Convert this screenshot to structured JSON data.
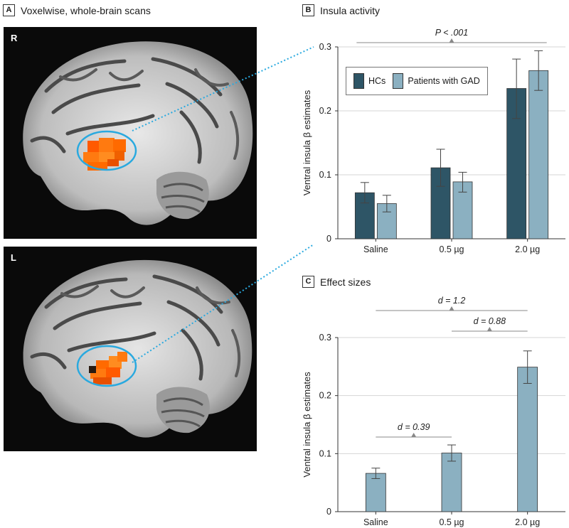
{
  "panels": {
    "a": {
      "letter": "A",
      "title": "Voxelwise, whole-brain scans",
      "scans": [
        {
          "label": "R"
        },
        {
          "label": "L"
        }
      ]
    },
    "b": {
      "letter": "B",
      "title": "Insula activity"
    },
    "c": {
      "letter": "C",
      "title": "Effect sizes"
    }
  },
  "legend": {
    "items": [
      {
        "label": "HCs",
        "color": "#2e5566"
      },
      {
        "label": "Patients with GAD",
        "color": "#8bb0c1"
      }
    ]
  },
  "chart_data": [
    {
      "panel": "B",
      "type": "bar",
      "title": "Insula activity",
      "ylabel": "Ventral insula β estimates",
      "xlabel": "",
      "categories": [
        "Saline",
        "0.5 µg",
        "2.0 µg"
      ],
      "ylim": [
        0,
        0.3
      ],
      "yticks": [
        "0",
        "0.1",
        "0.2",
        "0.3"
      ],
      "series": [
        {
          "name": "HCs",
          "color": "#2e5566",
          "values": [
            0.072,
            0.111,
            0.235
          ],
          "err_low": [
            0.056,
            0.082,
            0.188
          ],
          "err_high": [
            0.088,
            0.14,
            0.281
          ]
        },
        {
          "name": "Patients with GAD",
          "color": "#8bb0c1",
          "values": [
            0.055,
            0.089,
            0.263
          ],
          "err_low": [
            0.042,
            0.073,
            0.232
          ],
          "err_high": [
            0.068,
            0.104,
            0.294
          ]
        }
      ],
      "grid": "horizontal",
      "legend_position": "top-left",
      "annotations": [
        {
          "text": "P < .001",
          "from": "Saline",
          "to": "2.0 µg"
        }
      ]
    },
    {
      "panel": "C",
      "type": "bar",
      "title": "Effect sizes",
      "ylabel": "Ventral insula β estimates",
      "xlabel": "",
      "categories": [
        "Saline",
        "0.5 µg",
        "2.0 µg"
      ],
      "ylim": [
        0,
        0.3
      ],
      "yticks": [
        "0",
        "0.1",
        "0.2",
        "0.3"
      ],
      "series": [
        {
          "color": "#8bb0c1",
          "values": [
            0.066,
            0.101,
            0.249
          ],
          "err_low": [
            0.057,
            0.087,
            0.221
          ],
          "err_high": [
            0.075,
            0.115,
            0.277
          ]
        }
      ],
      "grid": "horizontal",
      "annotations": [
        {
          "text": "d = 1.2",
          "from": "Saline",
          "to": "2.0 µg"
        },
        {
          "text": "d = 0.88",
          "from": "0.5 µg",
          "to": "2.0 µg"
        },
        {
          "text": "d = 0.39",
          "from": "Saline",
          "to": "0.5 µg"
        }
      ]
    }
  ]
}
